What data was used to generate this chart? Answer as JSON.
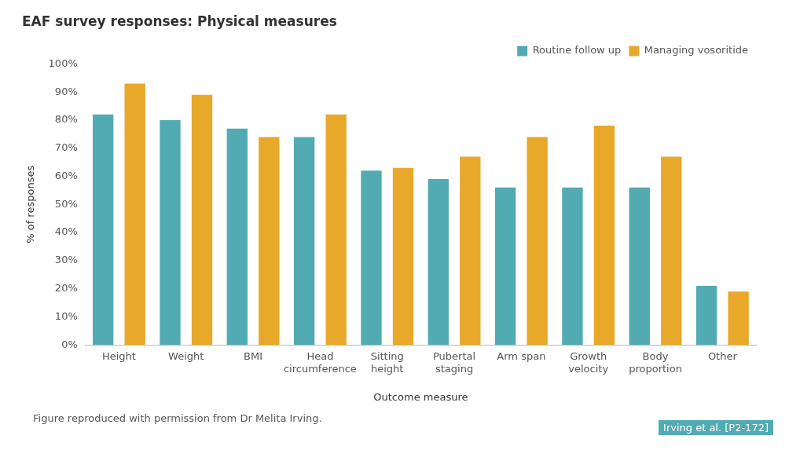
{
  "chart_data": {
    "type": "bar",
    "title": "EAF survey responses: Physical measures",
    "xlabel": "Outcome measure",
    "ylabel": "% of responses",
    "categories": [
      "Height",
      "Weight",
      "BMI",
      "Head circumference",
      "Sitting height",
      "Pubertal staging",
      "Arm span",
      "Growth velocity",
      "Body proportion",
      "Other"
    ],
    "series": [
      {
        "name": "Routine follow up",
        "color": "#52abb3",
        "values": [
          82,
          80,
          77,
          74,
          62,
          59,
          56,
          56,
          56,
          21
        ]
      },
      {
        "name": "Managing vosoritide",
        "color": "#e8a82a",
        "values": [
          93,
          89,
          74,
          82,
          63,
          67,
          74,
          78,
          67,
          19
        ]
      }
    ],
    "ylim": [
      0,
      100
    ],
    "yticks": [
      {
        "value": 0,
        "label": "0%"
      },
      {
        "value": 10,
        "label": "10%"
      },
      {
        "value": 20,
        "label": "20%"
      },
      {
        "value": 30,
        "label": "30%"
      },
      {
        "value": 40,
        "label": "40%"
      },
      {
        "value": 50,
        "label": "50%"
      },
      {
        "value": 60,
        "label": "60%"
      },
      {
        "value": 70,
        "label": "70%"
      },
      {
        "value": 80,
        "label": "80%"
      },
      {
        "value": 90,
        "label": "90%"
      },
      {
        "value": 100,
        "label": "100%"
      }
    ],
    "grid": false,
    "legend": "top right",
    "annotations": [
      "Figure reproduced with permission from Dr Melita Irving.",
      "Irving et al. [P2-172]"
    ]
  }
}
